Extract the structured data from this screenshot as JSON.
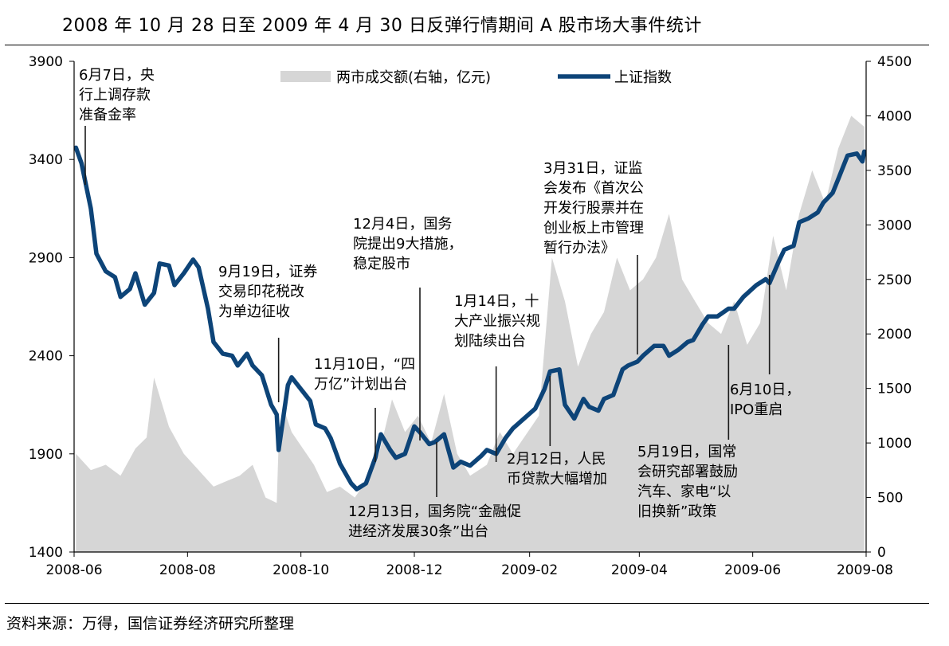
{
  "title": "2008 年 10 月 28 日至 2009 年 4 月 30 日反弹行情期间 A 股市场大事件统计",
  "source": "资料来源：万得，国信证券经济研究所整理",
  "colors": {
    "index_line": "#0d4478",
    "volume_area": "#d6d6d6",
    "annotation_line": "#1a1a1a"
  },
  "chart_data": {
    "type": "line",
    "x_ticks": [
      "2008-06",
      "2008-08",
      "2008-10",
      "2008-12",
      "2009-02",
      "2009-04",
      "2009-06",
      "2009-08"
    ],
    "y_left": {
      "ticks": [
        "1400",
        "1900",
        "2400",
        "2900",
        "3400",
        "3900"
      ],
      "range": [
        1400,
        3900
      ]
    },
    "y_right": {
      "ticks": [
        "0",
        "500",
        "1000",
        "1500",
        "2000",
        "2500",
        "3000",
        "3500",
        "4000",
        "4500"
      ],
      "range": [
        0,
        4500
      ]
    },
    "legend": {
      "position": "top-center",
      "items": [
        "两市成交额(右轴，亿元)",
        "上证指数"
      ]
    },
    "series": [
      {
        "name": "上证指数",
        "axis": "left",
        "x": [
          "2008-06-02",
          "2008-06-05",
          "2008-06-10",
          "2008-06-13",
          "2008-06-18",
          "2008-06-23",
          "2008-06-26",
          "2008-07-01",
          "2008-07-04",
          "2008-07-09",
          "2008-07-14",
          "2008-07-17",
          "2008-07-22",
          "2008-07-25",
          "2008-07-30",
          "2008-08-04",
          "2008-08-07",
          "2008-08-12",
          "2008-08-15",
          "2008-08-20",
          "2008-08-25",
          "2008-08-28",
          "2008-09-02",
          "2008-09-05",
          "2008-09-10",
          "2008-09-15",
          "2008-09-18",
          "2008-09-19",
          "2008-09-24",
          "2008-09-26",
          "2008-10-06",
          "2008-10-09",
          "2008-10-14",
          "2008-10-17",
          "2008-10-22",
          "2008-10-28",
          "2008-10-31",
          "2008-11-05",
          "2008-11-10",
          "2008-11-13",
          "2008-11-18",
          "2008-11-21",
          "2008-11-26",
          "2008-12-01",
          "2008-12-04",
          "2008-12-09",
          "2008-12-12",
          "2008-12-17",
          "2008-12-22",
          "2008-12-26",
          "2008-12-31",
          "2009-01-06",
          "2009-01-09",
          "2009-01-14",
          "2009-01-19",
          "2009-01-23",
          "2009-02-04",
          "2009-02-09",
          "2009-02-12",
          "2009-02-17",
          "2009-02-20",
          "2009-02-25",
          "2009-03-02",
          "2009-03-05",
          "2009-03-10",
          "2009-03-13",
          "2009-03-18",
          "2009-03-23",
          "2009-03-26",
          "2009-03-31",
          "2009-04-03",
          "2009-04-09",
          "2009-04-14",
          "2009-04-17",
          "2009-04-22",
          "2009-04-27",
          "2009-04-30",
          "2009-05-05",
          "2009-05-08",
          "2009-05-13",
          "2009-05-19",
          "2009-05-22",
          "2009-05-27",
          "2009-06-03",
          "2009-06-08",
          "2009-06-10",
          "2009-06-15",
          "2009-06-18",
          "2009-06-23",
          "2009-06-26",
          "2009-07-01",
          "2009-07-06",
          "2009-07-09",
          "2009-07-14",
          "2009-07-17",
          "2009-07-22",
          "2009-07-27",
          "2009-07-30",
          "2009-07-31"
        ],
        "values": [
          3460,
          3380,
          3150,
          2920,
          2830,
          2800,
          2700,
          2740,
          2820,
          2660,
          2720,
          2870,
          2860,
          2760,
          2820,
          2890,
          2850,
          2640,
          2470,
          2410,
          2400,
          2350,
          2410,
          2350,
          2300,
          2150,
          2100,
          1920,
          2250,
          2290,
          2170,
          2050,
          2030,
          1980,
          1850,
          1750,
          1720,
          1750,
          1880,
          2000,
          1920,
          1880,
          1900,
          2040,
          2010,
          1950,
          1960,
          2000,
          1830,
          1860,
          1840,
          1890,
          1920,
          1900,
          1980,
          2030,
          2130,
          2230,
          2320,
          2330,
          2150,
          2080,
          2180,
          2140,
          2120,
          2180,
          2200,
          2330,
          2350,
          2370,
          2400,
          2450,
          2450,
          2400,
          2430,
          2470,
          2480,
          2560,
          2600,
          2600,
          2640,
          2640,
          2700,
          2760,
          2790,
          2770,
          2880,
          2940,
          2960,
          3080,
          3100,
          3130,
          3180,
          3230,
          3300,
          3420,
          3430,
          3390,
          3440
        ]
      },
      {
        "name": "两市成交额(右轴，亿元)",
        "axis": "right",
        "x": [
          "2008-06-02",
          "2008-06-10",
          "2008-06-18",
          "2008-06-26",
          "2008-07-04",
          "2008-07-10",
          "2008-07-14",
          "2008-07-22",
          "2008-07-30",
          "2008-08-07",
          "2008-08-15",
          "2008-08-22",
          "2008-08-29",
          "2008-09-05",
          "2008-09-12",
          "2008-09-18",
          "2008-09-19",
          "2008-09-22",
          "2008-09-26",
          "2008-10-08",
          "2008-10-15",
          "2008-10-22",
          "2008-10-30",
          "2008-11-05",
          "2008-11-12",
          "2008-11-19",
          "2008-11-26",
          "2008-12-03",
          "2008-12-10",
          "2008-12-17",
          "2008-12-24",
          "2008-12-31",
          "2009-01-09",
          "2009-01-16",
          "2009-01-23",
          "2009-02-06",
          "2009-02-13",
          "2009-02-20",
          "2009-02-27",
          "2009-03-06",
          "2009-03-13",
          "2009-03-20",
          "2009-03-27",
          "2009-04-03",
          "2009-04-10",
          "2009-04-17",
          "2009-04-24",
          "2009-05-01",
          "2009-05-08",
          "2009-05-15",
          "2009-05-22",
          "2009-05-29",
          "2009-06-05",
          "2009-06-12",
          "2009-06-19",
          "2009-06-26",
          "2009-07-03",
          "2009-07-10",
          "2009-07-17",
          "2009-07-24",
          "2009-07-31"
        ],
        "values": [
          900,
          750,
          800,
          700,
          950,
          1050,
          1600,
          1150,
          900,
          750,
          600,
          650,
          700,
          800,
          500,
          450,
          1000,
          1300,
          1100,
          800,
          550,
          600,
          500,
          650,
          900,
          1400,
          1100,
          1250,
          1000,
          1450,
          900,
          700,
          800,
          1100,
          900,
          1250,
          2700,
          2300,
          1700,
          2000,
          2200,
          2700,
          2400,
          2500,
          2700,
          3100,
          2500,
          2300,
          2100,
          2000,
          2300,
          1900,
          2100,
          2900,
          2400,
          3100,
          3500,
          3200,
          3700,
          4000,
          3900
        ]
      }
    ],
    "annotations": [
      {
        "date": "2008-06-07",
        "text": [
          "6月7日，央",
          "行上调存款",
          "准备金率"
        ]
      },
      {
        "date": "2008-09-19",
        "text": [
          "9月19日，证券",
          "交易印花税改",
          "为单边征收"
        ]
      },
      {
        "date": "2008-11-10",
        "text": [
          "11月10日，“四",
          "万亿”计划出台"
        ]
      },
      {
        "date": "2008-12-04",
        "text": [
          "12月4日，国务",
          "院提出9大措施，",
          "稳定股市"
        ]
      },
      {
        "date": "2008-12-13",
        "text": [
          "12月13日，国务院“金融促",
          "进经济发展30条”出台"
        ]
      },
      {
        "date": "2009-01-14",
        "text": [
          "1月14日，十",
          "大产业振兴规",
          "划陆续出台"
        ]
      },
      {
        "date": "2009-02-12",
        "text": [
          "2月12日，人民",
          "币贷款大幅增加"
        ]
      },
      {
        "date": "2009-03-31",
        "text": [
          "3月31日，证监",
          "会发布《首次公",
          "开发行股票并在",
          "创业板上市管理",
          "暂行办法》"
        ]
      },
      {
        "date": "2009-05-19",
        "text": [
          "5月19日，国常",
          "会研究部署鼓励",
          "汽车、家电“以",
          "旧换新”政策"
        ]
      },
      {
        "date": "2009-06-10",
        "text": [
          "6月10日，",
          "IPO重启"
        ]
      }
    ]
  }
}
